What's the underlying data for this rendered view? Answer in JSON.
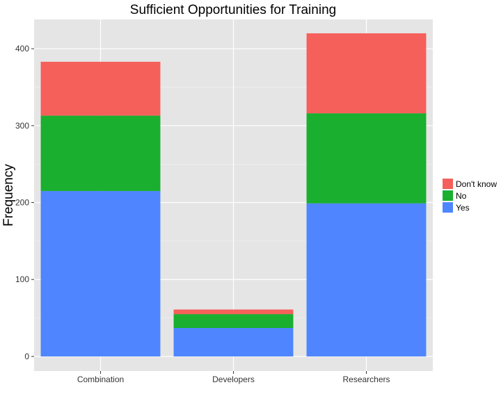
{
  "chart_data": {
    "type": "bar",
    "stacked": true,
    "title": "Sufficient Opportunities for Training",
    "xlabel": "",
    "ylabel": "Frequency",
    "categories": [
      "Combination",
      "Developers",
      "Researchers"
    ],
    "series": [
      {
        "name": "Yes",
        "color": "#4F86FF",
        "values": [
          215,
          37,
          199
        ]
      },
      {
        "name": "No",
        "color": "#1AAF2F",
        "values": [
          98,
          18,
          117
        ]
      },
      {
        "name": "Don't know",
        "color": "#F5605B",
        "values": [
          70,
          6,
          104
        ]
      }
    ],
    "legend_order": [
      "Don't know",
      "No",
      "Yes"
    ],
    "yticks": [
      0,
      100,
      200,
      300,
      400
    ],
    "ylim": [
      -19,
      438
    ],
    "grid": true,
    "legend_position": "right",
    "panel_color": "#E5E5E5"
  }
}
